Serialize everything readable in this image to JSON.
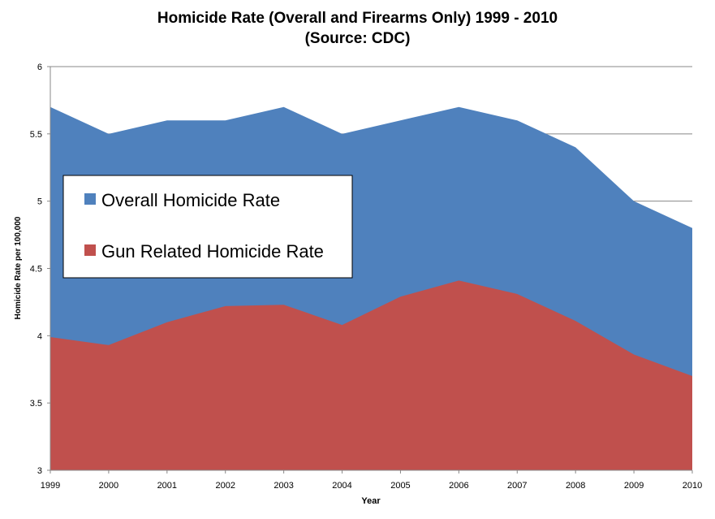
{
  "chart_data": {
    "type": "area",
    "title": "Homicide Rate (Overall and Firearms Only) 1999 - 2010",
    "subtitle": "(Source: CDC)",
    "xlabel": "Year",
    "ylabel": "Homicide Rate per 100,000",
    "categories": [
      "1999",
      "2000",
      "2001",
      "2002",
      "2003",
      "2004",
      "2005",
      "2006",
      "2007",
      "2008",
      "2009",
      "2010"
    ],
    "ylim": [
      3,
      6
    ],
    "yticks": [
      "3",
      "3.5",
      "4",
      "4.5",
      "5",
      "5.5",
      "6"
    ],
    "grid": true,
    "legend_position": "left",
    "series": [
      {
        "name": "Overall Homicide Rate",
        "color": "#4F81BD",
        "values": [
          5.7,
          5.5,
          5.6,
          5.6,
          5.7,
          5.5,
          5.6,
          5.7,
          5.6,
          5.4,
          5.0,
          4.8
        ]
      },
      {
        "name": "Gun Related Homicide Rate",
        "color": "#C0504D",
        "values": [
          3.99,
          3.93,
          4.1,
          4.22,
          4.23,
          4.08,
          4.29,
          4.41,
          4.31,
          4.11,
          3.86,
          3.7
        ]
      }
    ]
  }
}
